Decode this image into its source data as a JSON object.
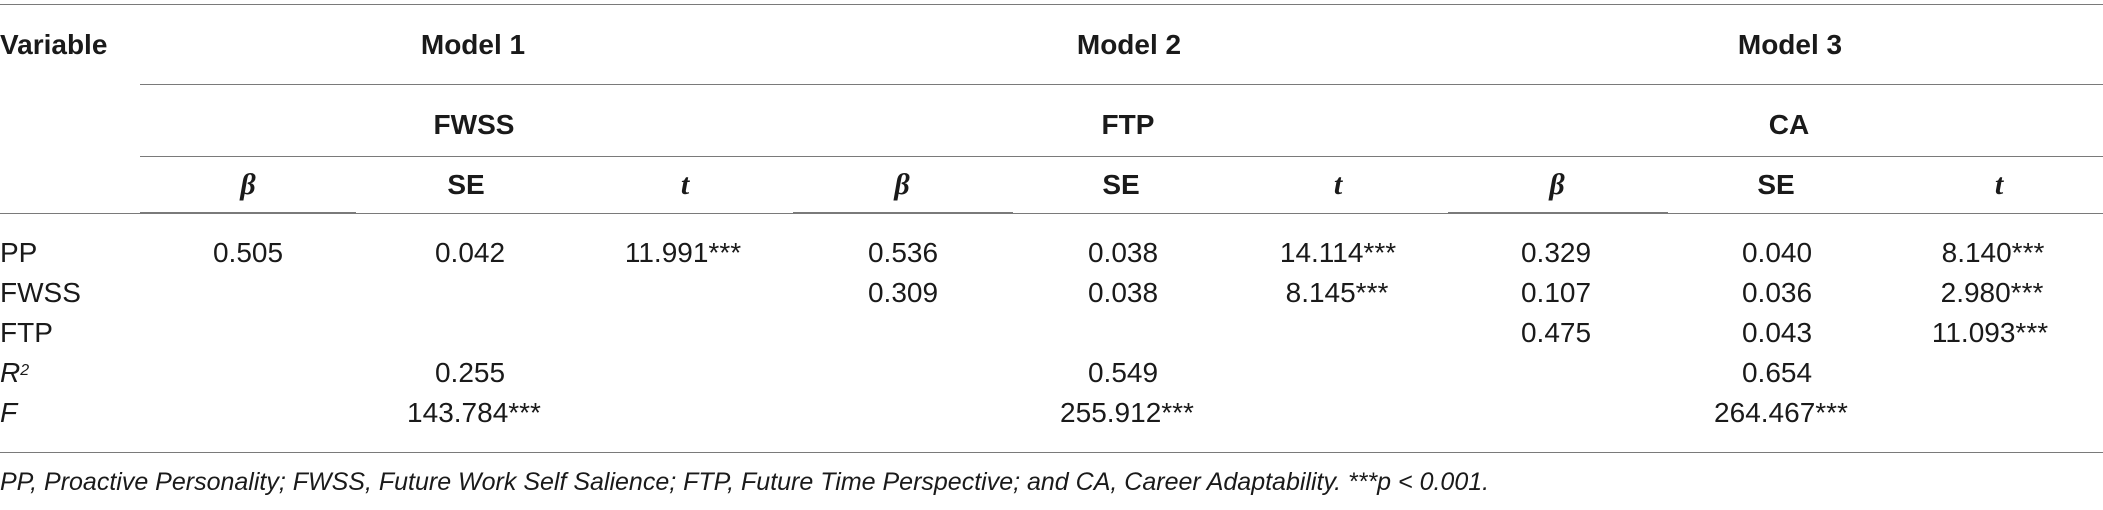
{
  "table": {
    "variable_header": "Variable",
    "models": [
      {
        "name": "Model 1",
        "outcome": "FWSS"
      },
      {
        "name": "Model 2",
        "outcome": "FTP"
      },
      {
        "name": "Model 3",
        "outcome": "CA"
      }
    ],
    "stat_headers": [
      "β",
      "SE",
      "t"
    ],
    "rows": [
      {
        "label": "PP",
        "cells": [
          "0.505",
          "0.042",
          "11.991***",
          "0.536",
          "0.038",
          "14.114***",
          "0.329",
          "0.040",
          "8.140***"
        ]
      },
      {
        "label": "FWSS",
        "cells": [
          "",
          "",
          "",
          "0.309",
          "0.038",
          "8.145***",
          "0.107",
          "0.036",
          "2.980***"
        ]
      },
      {
        "label": "FTP",
        "cells": [
          "",
          "",
          "",
          "",
          "",
          "",
          "0.475",
          "0.043",
          "11.093***"
        ]
      }
    ],
    "fit_rows": [
      {
        "label": "R",
        "label_sup": "2",
        "values": [
          "0.255",
          "0.549",
          "0.654"
        ]
      },
      {
        "label": "F",
        "values": [
          "143.784***",
          "255.912***",
          "264.467***"
        ]
      }
    ],
    "footnote": "PP, Proactive Personality; FWSS, Future Work Self Salience; FTP, Future Time Perspective; and CA, Career Adaptability. ***p < 0.001."
  }
}
